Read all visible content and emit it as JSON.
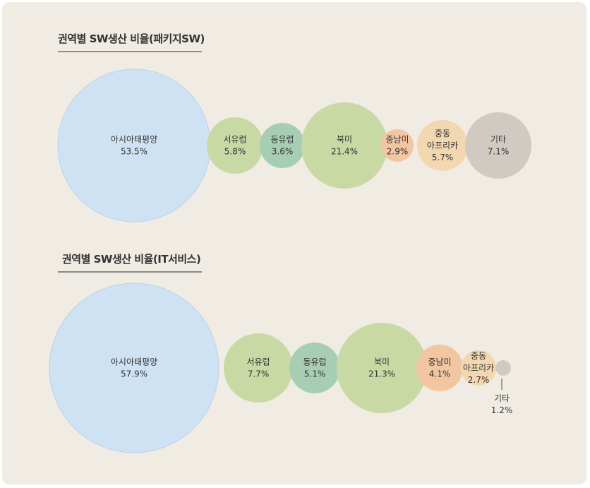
{
  "chart_data": [
    {
      "type": "bubble",
      "title": "권역별 SW생산 비율(패키지SW)",
      "series": [
        {
          "label": [
            "아시아태평양"
          ],
          "value": "53.5%",
          "number": 53.5,
          "color": "#cfe2f3"
        },
        {
          "label": [
            "서유럽"
          ],
          "value": "5.8%",
          "number": 5.8,
          "color": "#c8d9a4"
        },
        {
          "label": [
            "동유럽"
          ],
          "value": "3.6%",
          "number": 3.6,
          "color": "#a8cdb5"
        },
        {
          "label": [
            "북미"
          ],
          "value": "21.4%",
          "number": 21.4,
          "color": "#c8d9a4"
        },
        {
          "label": [
            "중남미"
          ],
          "value": "2.9%",
          "number": 2.9,
          "color": "#f1c6a0"
        },
        {
          "label": [
            "중동",
            "아프리카"
          ],
          "value": "5.7%",
          "number": 5.7,
          "color": "#f2d7b0"
        },
        {
          "label": [
            "기타"
          ],
          "value": "7.1%",
          "number": 7.1,
          "color": "#d0cac2"
        }
      ]
    },
    {
      "type": "bubble",
      "title": "권역별 SW생산 비율(IT서비스)",
      "series": [
        {
          "label": [
            "아시아태평양"
          ],
          "value": "57.9%",
          "number": 57.9,
          "color": "#cfe2f3"
        },
        {
          "label": [
            "서유럽"
          ],
          "value": "7.7%",
          "number": 7.7,
          "color": "#c8d9a4"
        },
        {
          "label": [
            "동유럽"
          ],
          "value": "5.1%",
          "number": 5.1,
          "color": "#a8cdb5"
        },
        {
          "label": [
            "북미"
          ],
          "value": "21.3%",
          "number": 21.3,
          "color": "#c8d9a4"
        },
        {
          "label": [
            "중남미"
          ],
          "value": "4.1%",
          "number": 4.1,
          "color": "#f1c6a0"
        },
        {
          "label": [
            "중동",
            "아프리카"
          ],
          "value": "2.7%",
          "number": 2.7,
          "color": "#f2d7b0"
        },
        {
          "label": [
            "기타"
          ],
          "value": "1.2%",
          "number": 1.2,
          "color": "#d0cac2"
        }
      ]
    }
  ]
}
